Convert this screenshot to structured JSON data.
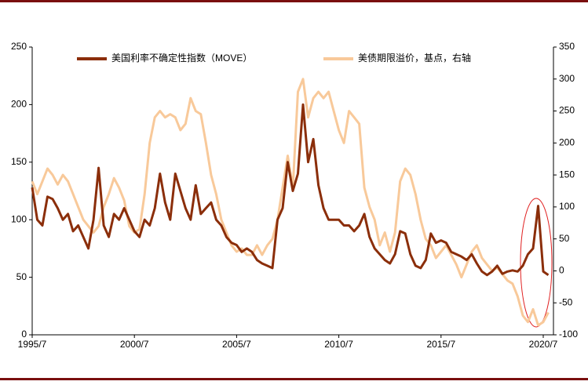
{
  "chart_data": {
    "type": "line",
    "x": [
      "1995/7",
      "1995/10",
      "1996/1",
      "1996/4",
      "1996/7",
      "1996/10",
      "1997/1",
      "1997/4",
      "1997/7",
      "1997/10",
      "1998/1",
      "1998/4",
      "1998/7",
      "1998/10",
      "1999/1",
      "1999/4",
      "1999/7",
      "1999/10",
      "2000/1",
      "2000/4",
      "2000/7",
      "2000/10",
      "2001/1",
      "2001/4",
      "2001/7",
      "2001/10",
      "2002/1",
      "2002/4",
      "2002/7",
      "2002/10",
      "2003/1",
      "2003/4",
      "2003/7",
      "2003/10",
      "2004/1",
      "2004/4",
      "2004/7",
      "2004/10",
      "2005/1",
      "2005/4",
      "2005/7",
      "2005/10",
      "2006/1",
      "2006/4",
      "2006/7",
      "2006/10",
      "2007/1",
      "2007/4",
      "2007/7",
      "2007/10",
      "2008/1",
      "2008/4",
      "2008/7",
      "2008/10",
      "2009/1",
      "2009/4",
      "2009/7",
      "2009/10",
      "2010/1",
      "2010/4",
      "2010/7",
      "2010/10",
      "2011/1",
      "2011/4",
      "2011/7",
      "2011/10",
      "2012/1",
      "2012/4",
      "2012/7",
      "2012/10",
      "2013/1",
      "2013/4",
      "2013/7",
      "2013/10",
      "2014/1",
      "2014/4",
      "2014/7",
      "2014/10",
      "2015/1",
      "2015/4",
      "2015/7",
      "2015/10",
      "2016/1",
      "2016/4",
      "2016/7",
      "2016/10",
      "2017/1",
      "2017/4",
      "2017/7",
      "2017/10",
      "2018/1",
      "2018/4",
      "2018/7",
      "2018/10",
      "2019/1",
      "2019/4",
      "2019/7",
      "2019/10",
      "2020/1",
      "2020/4",
      "2020/7",
      "2020/10"
    ],
    "xticks": [
      "1995/7",
      "2000/7",
      "2005/7",
      "2010/7",
      "2015/7",
      "2020/7"
    ],
    "series": [
      {
        "name": "美国利率不确定性指数（MOVE）",
        "color": "#8b2e0a",
        "values": [
          128,
          100,
          95,
          120,
          118,
          110,
          100,
          105,
          90,
          95,
          85,
          75,
          100,
          145,
          95,
          85,
          105,
          100,
          110,
          100,
          90,
          85,
          100,
          95,
          110,
          140,
          115,
          100,
          140,
          125,
          110,
          100,
          130,
          105,
          110,
          115,
          100,
          95,
          85,
          80,
          78,
          72,
          75,
          72,
          65,
          62,
          60,
          58,
          100,
          110,
          150,
          125,
          140,
          200,
          150,
          170,
          130,
          110,
          100,
          100,
          100,
          95,
          95,
          90,
          95,
          105,
          85,
          75,
          70,
          65,
          62,
          70,
          90,
          88,
          70,
          60,
          58,
          65,
          88,
          80,
          82,
          80,
          72,
          70,
          68,
          65,
          70,
          62,
          55,
          52,
          55,
          60,
          53,
          55,
          56,
          55,
          60,
          70,
          75,
          112,
          55,
          52
        ]
      },
      {
        "name": "美债期限溢价，基点，右轴",
        "color": "#f8c99a",
        "axis": "y2",
        "values": [
          140,
          120,
          140,
          160,
          150,
          135,
          150,
          140,
          120,
          100,
          80,
          70,
          60,
          70,
          100,
          120,
          145,
          130,
          110,
          70,
          60,
          65,
          120,
          200,
          240,
          250,
          240,
          245,
          240,
          220,
          230,
          270,
          250,
          245,
          200,
          150,
          120,
          80,
          60,
          40,
          30,
          35,
          25,
          25,
          40,
          25,
          40,
          50,
          80,
          130,
          180,
          130,
          280,
          300,
          240,
          270,
          280,
          270,
          280,
          250,
          220,
          200,
          250,
          240,
          230,
          130,
          100,
          80,
          40,
          60,
          30,
          60,
          140,
          160,
          150,
          120,
          80,
          50,
          40,
          20,
          30,
          40,
          25,
          10,
          -10,
          10,
          30,
          40,
          20,
          10,
          0,
          5,
          -5,
          -15,
          -20,
          -40,
          -70,
          -80,
          -60,
          -85,
          -80,
          -65
        ]
      }
    ],
    "ylim": [
      0,
      250
    ],
    "yticks": [
      0,
      50,
      100,
      150,
      200,
      250
    ],
    "y2lim": [
      -100,
      350
    ],
    "y2ticks": [
      -100,
      -50,
      0,
      50,
      100,
      150,
      200,
      250,
      300,
      350
    ]
  }
}
